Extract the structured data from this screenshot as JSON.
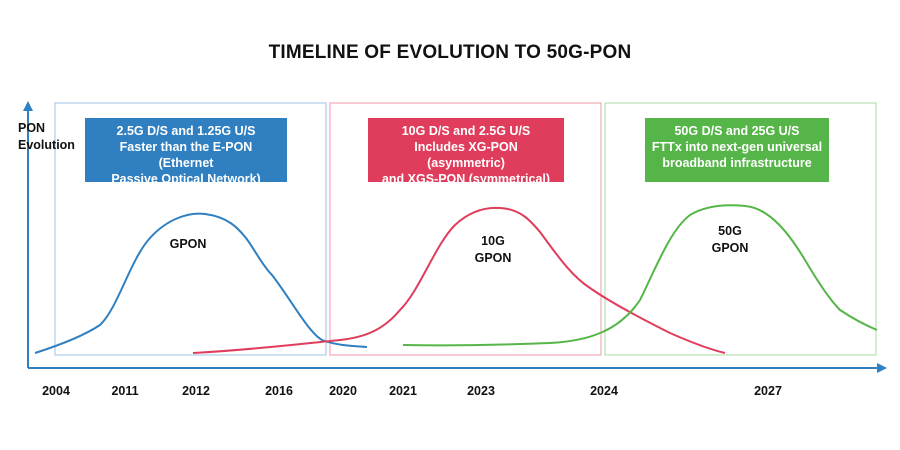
{
  "title": "TIMELINE OF EVOLUTION TO 50G-PON",
  "y_axis_label": [
    "PON",
    "Evolution"
  ],
  "eras": [
    {
      "name": "GPON",
      "color": "#2f7fc1",
      "box_border": "#9cc3e6",
      "callout": [
        "2.5G D/S and 1.25G U/S",
        "Faster than the E-PON (Ethernet",
        "Passive Optical Network)"
      ],
      "curve_label": [
        "GPON"
      ]
    },
    {
      "name": "10G GPON",
      "color": "#e03d5c",
      "box_border": "#ef9aab",
      "callout": [
        "10G D/S and 2.5G U/S",
        "Includes XG-PON (asymmetric)",
        "and XGS-PON (symmetrical)"
      ],
      "curve_label": [
        "10G",
        "GPON"
      ]
    },
    {
      "name": "50G GPON",
      "color": "#56b548",
      "box_border": "#a8d9a0",
      "callout": [
        "50G D/S and 25G U/S",
        "FTTx into next-gen universal",
        "broadband infrastructure"
      ],
      "curve_label": [
        "50G",
        "GPON"
      ]
    }
  ],
  "years": [
    "2004",
    "2011",
    "2012",
    "2016",
    "2020",
    "2021",
    "2023",
    "2024",
    "2027"
  ],
  "axis_color": "#2f7fc1"
}
